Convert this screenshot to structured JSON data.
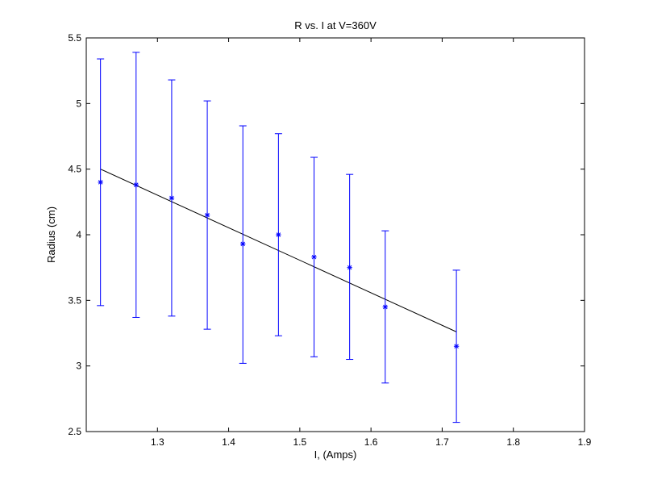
{
  "chart_data": {
    "type": "scatter",
    "title": "R vs. I at V=360V",
    "xlabel": "I, (Amps)",
    "ylabel": "Radius (cm)",
    "xlim": [
      1.2,
      1.9
    ],
    "ylim": [
      2.5,
      5.5
    ],
    "xticks": [
      1.3,
      1.4,
      1.5,
      1.6,
      1.7,
      1.8,
      1.9
    ],
    "xtick_labels": [
      "1.3",
      "1.4",
      "1.5",
      "1.6",
      "1.7",
      "1.8",
      "1.9"
    ],
    "yticks": [
      2.5,
      3,
      3.5,
      4,
      4.5,
      5,
      5.5
    ],
    "ytick_labels": [
      "2.5",
      "3",
      "3.5",
      "4",
      "4.5",
      "5",
      "5.5"
    ],
    "grid": false,
    "series": [
      {
        "kind": "errorbar",
        "marker": "asterisk",
        "color": "#0000ff",
        "x": [
          1.22,
          1.27,
          1.32,
          1.37,
          1.42,
          1.47,
          1.52,
          1.57,
          1.62,
          1.72
        ],
        "y": [
          4.4,
          4.38,
          4.28,
          4.15,
          3.93,
          4.0,
          3.83,
          3.75,
          3.45,
          3.15
        ],
        "err_low": [
          3.46,
          3.37,
          3.38,
          3.28,
          3.02,
          3.23,
          3.07,
          3.05,
          2.87,
          2.57
        ],
        "err_high": [
          5.34,
          5.39,
          5.18,
          5.02,
          4.83,
          4.77,
          4.59,
          4.46,
          4.03,
          3.73
        ]
      },
      {
        "kind": "fit-line",
        "color": "#000000",
        "x": [
          1.22,
          1.72
        ],
        "y": [
          4.5,
          3.26
        ]
      }
    ]
  }
}
